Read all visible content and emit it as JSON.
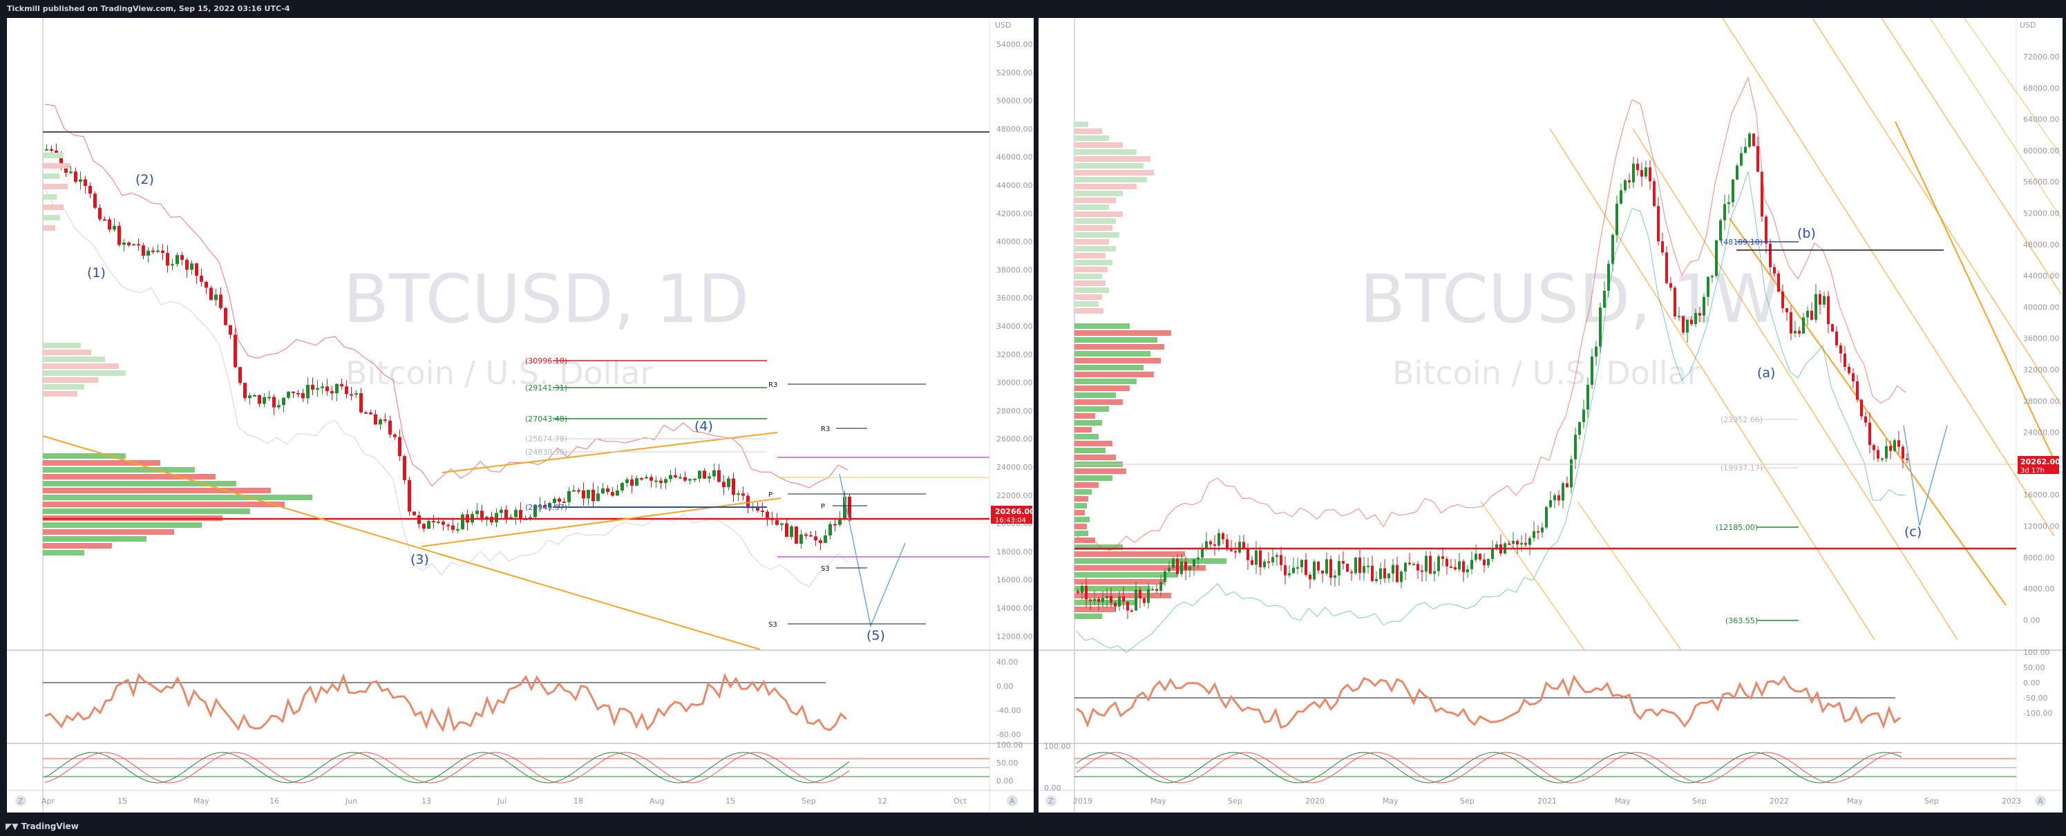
{
  "header": {
    "publisher": "Tickmill published on TradingView.com, Sep 15, 2022 03:16 UTC-4"
  },
  "footer": {
    "brand": "TradingView"
  },
  "colors": {
    "up": "#26a69a",
    "down": "#ef5350",
    "candle_up": "#1e8b2e",
    "candle_down": "#e0141e",
    "accent": "#f7a325",
    "wave": "#2a4fa8"
  },
  "left": {
    "symbol": "BTCUSD, 1D",
    "name": "Bitcoin / U.S. Dollar",
    "currency": "USD",
    "price_axis": [
      "54000.00",
      "52000.00",
      "50000.00",
      "48000.00",
      "46000.00",
      "44000.00",
      "42000.00",
      "40000.00",
      "38000.00",
      "36000.00",
      "34000.00",
      "32000.00",
      "30000.00",
      "28000.00",
      "26000.00",
      "24000.00",
      "22000.00",
      "20000.00",
      "18000.00",
      "16000.00",
      "14000.00",
      "12000.00"
    ],
    "last_price": "20266.00",
    "countdown": "16:43:04",
    "levels": [
      {
        "label": "(30996.10)",
        "color": "#e0141e"
      },
      {
        "label": "(29141.31)",
        "color": "#1e8b2e"
      },
      {
        "label": "(27043.48)",
        "color": "#1e8b2e"
      },
      {
        "label": "(25674.78)",
        "color": "#b0b8c8"
      },
      {
        "label": "(24830.38)",
        "color": "#b0b8c8"
      },
      {
        "label": "(20949.97)",
        "color": "#2a4fa8"
      }
    ],
    "pivots": [
      "R3",
      "R3",
      "P",
      "P",
      "S3",
      "S3"
    ],
    "waves": [
      "(1)",
      "(2)",
      "(3)",
      "(4)",
      "(5)"
    ],
    "time_axis": [
      "Apr",
      "15",
      "May",
      "16",
      "Jun",
      "13",
      "Jul",
      "18",
      "Aug",
      "15",
      "Sep",
      "12",
      "Oct"
    ],
    "osc_axis": [
      "40.00",
      "0.00",
      "-40.00",
      "-80.00"
    ],
    "stoch_axis": [
      "100.00",
      "50.00",
      "0.00"
    ]
  },
  "right": {
    "symbol": "BTCUSD, 1W",
    "name": "Bitcoin / U.S. Dollar",
    "currency": "USD",
    "price_axis": [
      "72000.00",
      "68000.00",
      "64000.00",
      "60000.00",
      "56000.00",
      "52000.00",
      "48000.00",
      "44000.00",
      "40000.00",
      "36000.00",
      "32000.00",
      "28000.00",
      "24000.00",
      "20000.00",
      "16000.00",
      "12000.00",
      "8000.00",
      "4000.00",
      "0.00"
    ],
    "last_price": "20262.00",
    "countdown": "3d 17h",
    "levels": [
      {
        "label": "(48189.10)",
        "color": "#2a4fa8"
      },
      {
        "label": "(23952.66)",
        "color": "#b0b8c8"
      },
      {
        "label": "(19937.17)",
        "color": "#b0b8c8"
      },
      {
        "label": "(12185.00)",
        "color": "#1e8b2e"
      },
      {
        "label": "(363.55)",
        "color": "#1e8b2e"
      }
    ],
    "waves": [
      "(a)",
      "(b)",
      "(c)"
    ],
    "time_axis": [
      "2019",
      "May",
      "Sep",
      "2020",
      "May",
      "Sep",
      "2021",
      "May",
      "Sep",
      "2022",
      "May",
      "Sep",
      "2023"
    ],
    "osc_axis": [
      "100.00",
      "50.00",
      "0.00",
      "-50.00",
      "-100.00"
    ],
    "stoch_axis": [
      "100.00",
      "0.00"
    ]
  }
}
